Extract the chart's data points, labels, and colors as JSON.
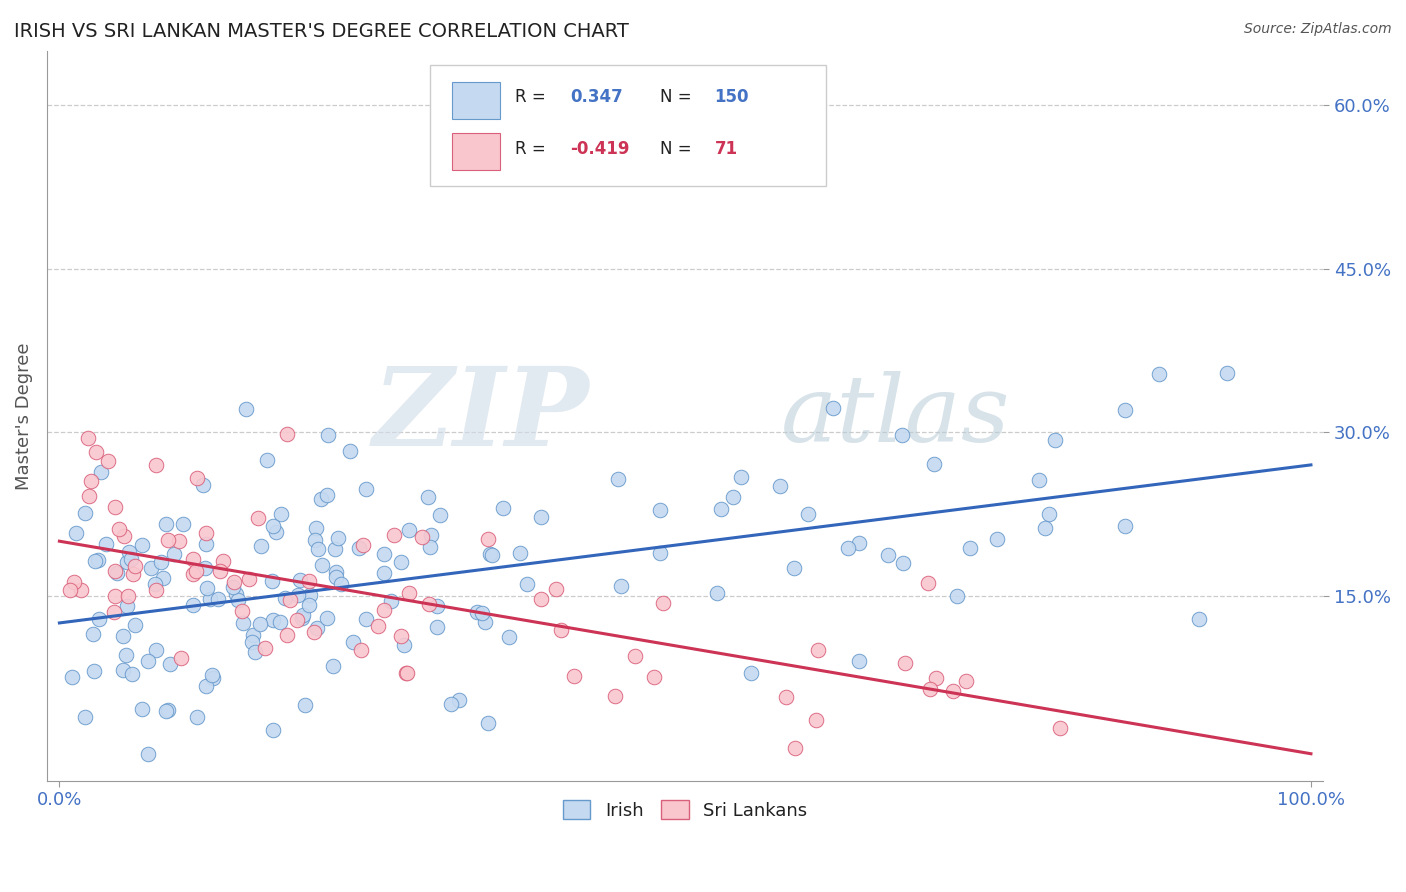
{
  "title": "IRISH VS SRI LANKAN MASTER'S DEGREE CORRELATION CHART",
  "source_text": "Source: ZipAtlas.com",
  "ylabel": "Master's Degree",
  "y_tick_labels": [
    "15.0%",
    "30.0%",
    "45.0%",
    "60.0%"
  ],
  "y_tick_values": [
    0.15,
    0.3,
    0.45,
    0.6
  ],
  "xlim": [
    -0.01,
    1.01
  ],
  "ylim": [
    -0.02,
    0.65
  ],
  "R_irish": 0.347,
  "N_irish": 150,
  "R_srilankan": -0.419,
  "N_srilankan": 71,
  "irish_fill_color": "#c5d9f0",
  "irish_edge_color": "#6699cc",
  "srilankan_fill_color": "#f9c6ce",
  "srilankan_edge_color": "#d9607a",
  "irish_line_color": "#3366bb",
  "srilankan_line_color": "#cc3355",
  "legend_label_irish": "Irish",
  "legend_label_srilankan": "Sri Lankans",
  "watermark_zip": "ZIP",
  "watermark_atlas": "atlas",
  "background_color": "#ffffff",
  "grid_color": "#cccccc",
  "title_color": "#222222",
  "axis_label_color": "#4472c4",
  "irish_slope": 0.145,
  "irish_intercept": 0.125,
  "srilankan_slope": -0.195,
  "srilankan_intercept": 0.2,
  "irish_seed": 42,
  "srilankan_seed": 99
}
